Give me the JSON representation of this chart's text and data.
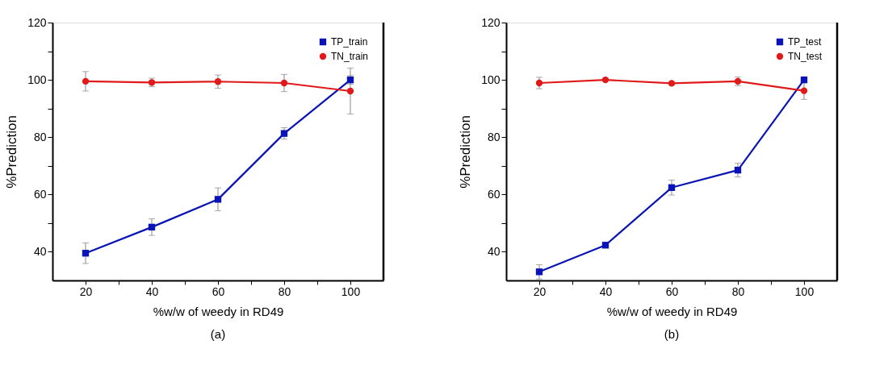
{
  "chart_data": [
    {
      "type": "line",
      "title": "(a)",
      "xlabel": "%w/w of weedy in RD49",
      "ylabel": "%Prediction",
      "x": [
        20,
        40,
        60,
        80,
        100
      ],
      "series": [
        {
          "name": "TP_train",
          "color": "#0a14b4",
          "marker": "square",
          "values": [
            39.5,
            48.6,
            58.3,
            81.3,
            100
          ],
          "errors": [
            3.6,
            2.9,
            4,
            2,
            1.5
          ]
        },
        {
          "name": "TN_train",
          "color": "#e01a1a",
          "marker": "circle",
          "values": [
            99.5,
            99.1,
            99.4,
            98.9,
            96.1
          ],
          "errors": [
            3.4,
            1.5,
            2.3,
            3,
            8
          ]
        }
      ],
      "xlim": [
        10,
        110
      ],
      "xticks": [
        20,
        {
          "value": 30,
          "label": null
        },
        40,
        {
          "value": 50,
          "label": null
        },
        60,
        {
          "value": 70,
          "label": null
        },
        80,
        {
          "value": 90,
          "label": null
        },
        100
      ],
      "ylim": [
        30,
        120
      ],
      "yticks": [
        40,
        {
          "value": 50,
          "label": null
        },
        60,
        {
          "value": 70,
          "label": null
        },
        80,
        {
          "value": 90,
          "label": null
        },
        100,
        {
          "value": 110,
          "label": null
        },
        120
      ],
      "grid": false,
      "legend": "top right",
      "line_style": "solid"
    },
    {
      "type": "line",
      "title": "(b)",
      "xlabel": "%w/w of weedy in RD49",
      "ylabel": "%Prediction",
      "x": [
        20,
        40,
        60,
        80,
        100
      ],
      "series": [
        {
          "name": "TP_test",
          "color": "#0a14b4",
          "marker": "square",
          "values": [
            33.0,
            42.3,
            62.4,
            68.5,
            100
          ],
          "errors": [
            2.5,
            null,
            2.6,
            2.4,
            null
          ]
        },
        {
          "name": "TN_test",
          "color": "#e01a1a",
          "marker": "circle",
          "values": [
            98.9,
            100,
            98.8,
            99.5,
            96.2
          ],
          "errors": [
            2,
            null,
            null,
            1.5,
            3
          ]
        }
      ],
      "xlim": [
        10,
        110
      ],
      "xticks": [
        20,
        {
          "value": 30,
          "label": null
        },
        40,
        {
          "value": 50,
          "label": null
        },
        60,
        {
          "value": 70,
          "label": null
        },
        80,
        {
          "value": 90,
          "label": null
        },
        100
      ],
      "ylim": [
        30,
        120
      ],
      "yticks": [
        40,
        {
          "value": 50,
          "label": null
        },
        60,
        {
          "value": 70,
          "label": null
        },
        80,
        {
          "value": 90,
          "label": null
        },
        100,
        {
          "value": 110,
          "label": null
        },
        120
      ],
      "grid": false,
      "legend": "top right",
      "line_style": "solid"
    }
  ]
}
